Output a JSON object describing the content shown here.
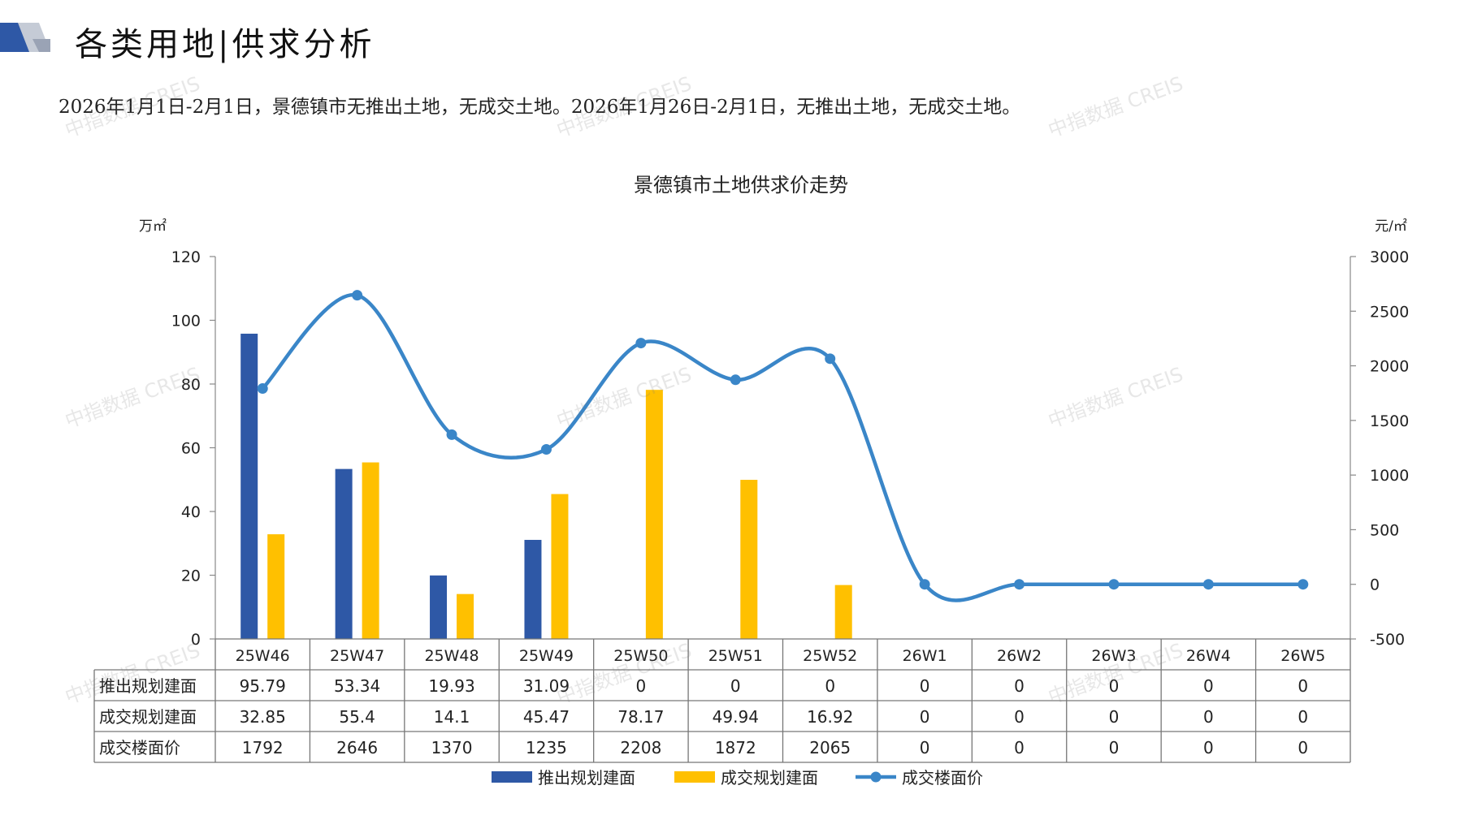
{
  "header": {
    "title": "各类用地|供求分析",
    "summary": "2026年1月1日-2月1日，景德镇市无推出土地，无成交土地。2026年1月26日-2月1日，无推出土地，无成交土地。"
  },
  "watermark_text": "中指数据 CREIS",
  "colors": {
    "supply_bar": "#2E58A6",
    "deal_bar": "#FFC000",
    "price_line": "#3A86C8",
    "logo_dark": "#2E58A6",
    "logo_gray": "#9AA3B5"
  },
  "chart_data": {
    "type": "bar",
    "title": "景德镇市土地供求价走势",
    "y_left_unit": "万㎡",
    "y_right_unit": "元/㎡",
    "categories": [
      "25W46",
      "25W47",
      "25W48",
      "25W49",
      "25W50",
      "25W51",
      "25W52",
      "26W1",
      "26W2",
      "26W3",
      "26W4",
      "26W5"
    ],
    "y_left_ticks": [
      "120",
      "100",
      "80",
      "60",
      "40",
      "20",
      "0"
    ],
    "y_left_range": [
      0,
      120
    ],
    "y_right_ticks": [
      "3000",
      "2500",
      "2000",
      "1500",
      "1000",
      "500",
      "0",
      "-500"
    ],
    "y_right_range": [
      -500,
      3000
    ],
    "series": [
      {
        "name": "推出规划建面",
        "type": "bar",
        "axis": "left",
        "values": [
          95.79,
          53.34,
          19.93,
          31.09,
          0,
          0,
          0,
          0,
          0,
          0,
          0,
          0
        ],
        "labels": [
          "95.79",
          "53.34",
          "19.93",
          "31.09",
          "0",
          "0",
          "0",
          "0",
          "0",
          "0",
          "0",
          "0"
        ]
      },
      {
        "name": "成交规划建面",
        "type": "bar",
        "axis": "left",
        "values": [
          32.85,
          55.4,
          14.1,
          45.47,
          78.17,
          49.94,
          16.92,
          0,
          0,
          0,
          0,
          0
        ],
        "labels": [
          "32.85",
          "55.4",
          "14.1",
          "45.47",
          "78.17",
          "49.94",
          "16.92",
          "0",
          "0",
          "0",
          "0",
          "0"
        ]
      },
      {
        "name": "成交楼面价",
        "type": "line",
        "axis": "right",
        "values": [
          1792,
          2646,
          1370,
          1235,
          2208,
          1872,
          2065,
          0,
          0,
          0,
          0,
          0
        ],
        "labels": [
          "1792",
          "2646",
          "1370",
          "1235",
          "2208",
          "1872",
          "2065",
          "0",
          "0",
          "0",
          "0",
          "0"
        ]
      }
    ],
    "legend_position": "bottom-center"
  }
}
